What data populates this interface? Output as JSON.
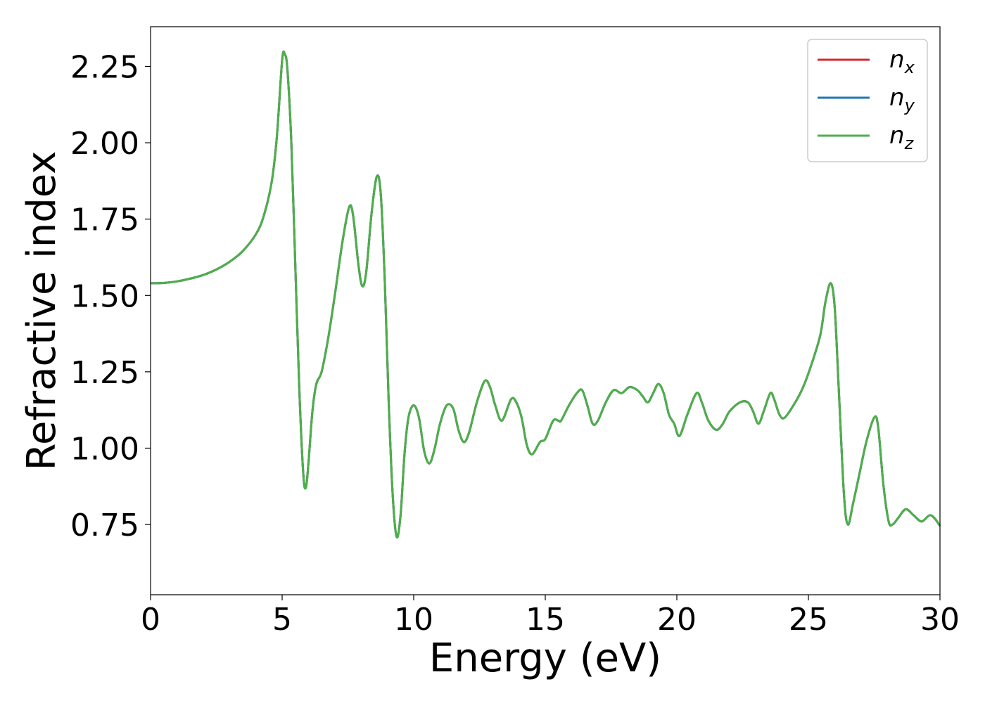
{
  "chart_data": {
    "type": "line",
    "xlabel": "Energy (eV)",
    "ylabel": "Refractive index",
    "xlim": [
      0,
      30
    ],
    "ylim": [
      0.52,
      2.38
    ],
    "xticks": [
      0,
      5,
      10,
      15,
      20,
      25,
      30
    ],
    "yticks": [
      0.75,
      1.0,
      1.25,
      1.5,
      1.75,
      2.0,
      2.25
    ],
    "xtick_labels": [
      "0",
      "5",
      "10",
      "15",
      "20",
      "25",
      "30"
    ],
    "ytick_labels": [
      "0.75",
      "1.00",
      "1.25",
      "1.50",
      "1.75",
      "2.00",
      "2.25"
    ],
    "grid": false,
    "legend_position": "top-right",
    "series": [
      {
        "name_base": "n",
        "name_sub": "x",
        "color": "#d62728"
      },
      {
        "name_base": "n",
        "name_sub": "y",
        "color": "#1f77b4"
      },
      {
        "name_base": "n",
        "name_sub": "z",
        "color": "#4daf4a"
      }
    ],
    "points": [
      [
        0,
        1.54
      ],
      [
        0.5,
        1.541
      ],
      [
        1,
        1.546
      ],
      [
        1.5,
        1.555
      ],
      [
        2,
        1.567
      ],
      [
        2.5,
        1.585
      ],
      [
        3,
        1.61
      ],
      [
        3.5,
        1.645
      ],
      [
        4,
        1.7
      ],
      [
        4.3,
        1.76
      ],
      [
        4.6,
        1.87
      ],
      [
        4.8,
        2.02
      ],
      [
        5.0,
        2.27
      ],
      [
        5.1,
        2.29
      ],
      [
        5.2,
        2.24
      ],
      [
        5.35,
        2.0
      ],
      [
        5.5,
        1.6
      ],
      [
        5.65,
        1.2
      ],
      [
        5.8,
        0.92
      ],
      [
        5.9,
        0.87
      ],
      [
        6.0,
        0.95
      ],
      [
        6.15,
        1.12
      ],
      [
        6.3,
        1.21
      ],
      [
        6.5,
        1.25
      ],
      [
        6.75,
        1.36
      ],
      [
        7.0,
        1.5
      ],
      [
        7.3,
        1.68
      ],
      [
        7.55,
        1.79
      ],
      [
        7.7,
        1.76
      ],
      [
        7.9,
        1.6
      ],
      [
        8.05,
        1.53
      ],
      [
        8.2,
        1.58
      ],
      [
        8.4,
        1.77
      ],
      [
        8.6,
        1.89
      ],
      [
        8.75,
        1.83
      ],
      [
        8.9,
        1.55
      ],
      [
        9.05,
        1.15
      ],
      [
        9.2,
        0.85
      ],
      [
        9.35,
        0.71
      ],
      [
        9.5,
        0.78
      ],
      [
        9.65,
        0.98
      ],
      [
        9.8,
        1.1
      ],
      [
        10.0,
        1.14
      ],
      [
        10.2,
        1.1
      ],
      [
        10.4,
        0.99
      ],
      [
        10.6,
        0.95
      ],
      [
        10.8,
        1.0
      ],
      [
        11.0,
        1.08
      ],
      [
        11.25,
        1.14
      ],
      [
        11.5,
        1.13
      ],
      [
        11.7,
        1.06
      ],
      [
        11.9,
        1.02
      ],
      [
        12.1,
        1.05
      ],
      [
        12.4,
        1.15
      ],
      [
        12.7,
        1.22
      ],
      [
        12.9,
        1.2
      ],
      [
        13.1,
        1.14
      ],
      [
        13.35,
        1.09
      ],
      [
        13.7,
        1.16
      ],
      [
        13.9,
        1.15
      ],
      [
        14.1,
        1.1
      ],
      [
        14.3,
        1.01
      ],
      [
        14.5,
        0.98
      ],
      [
        14.8,
        1.02
      ],
      [
        15.0,
        1.03
      ],
      [
        15.3,
        1.09
      ],
      [
        15.5,
        1.09
      ],
      [
        15.6,
        1.09
      ],
      [
        15.9,
        1.14
      ],
      [
        16.2,
        1.18
      ],
      [
        16.4,
        1.19
      ],
      [
        16.6,
        1.14
      ],
      [
        16.8,
        1.08
      ],
      [
        17.0,
        1.09
      ],
      [
        17.3,
        1.15
      ],
      [
        17.6,
        1.19
      ],
      [
        17.9,
        1.18
      ],
      [
        18.2,
        1.2
      ],
      [
        18.5,
        1.19
      ],
      [
        18.7,
        1.17
      ],
      [
        18.9,
        1.15
      ],
      [
        19.1,
        1.18
      ],
      [
        19.3,
        1.21
      ],
      [
        19.5,
        1.18
      ],
      [
        19.7,
        1.11
      ],
      [
        19.9,
        1.08
      ],
      [
        20.1,
        1.04
      ],
      [
        20.4,
        1.11
      ],
      [
        20.75,
        1.18
      ],
      [
        20.95,
        1.15
      ],
      [
        21.2,
        1.09
      ],
      [
        21.5,
        1.06
      ],
      [
        21.75,
        1.08
      ],
      [
        22.0,
        1.12
      ],
      [
        22.4,
        1.15
      ],
      [
        22.7,
        1.15
      ],
      [
        22.9,
        1.12
      ],
      [
        23.1,
        1.08
      ],
      [
        23.3,
        1.12
      ],
      [
        23.55,
        1.18
      ],
      [
        23.7,
        1.16
      ],
      [
        23.9,
        1.11
      ],
      [
        24.1,
        1.1
      ],
      [
        24.5,
        1.15
      ],
      [
        24.8,
        1.2
      ],
      [
        25.1,
        1.27
      ],
      [
        25.45,
        1.37
      ],
      [
        25.65,
        1.48
      ],
      [
        25.85,
        1.54
      ],
      [
        26.0,
        1.46
      ],
      [
        26.15,
        1.2
      ],
      [
        26.35,
        0.85
      ],
      [
        26.5,
        0.75
      ],
      [
        26.7,
        0.82
      ],
      [
        26.95,
        0.92
      ],
      [
        27.2,
        1.02
      ],
      [
        27.5,
        1.1
      ],
      [
        27.65,
        1.07
      ],
      [
        27.85,
        0.88
      ],
      [
        28.05,
        0.76
      ],
      [
        28.2,
        0.75
      ],
      [
        28.4,
        0.77
      ],
      [
        28.7,
        0.8
      ],
      [
        29.0,
        0.78
      ],
      [
        29.3,
        0.76
      ],
      [
        29.6,
        0.78
      ],
      [
        29.8,
        0.77
      ],
      [
        30.0,
        0.745
      ]
    ]
  }
}
